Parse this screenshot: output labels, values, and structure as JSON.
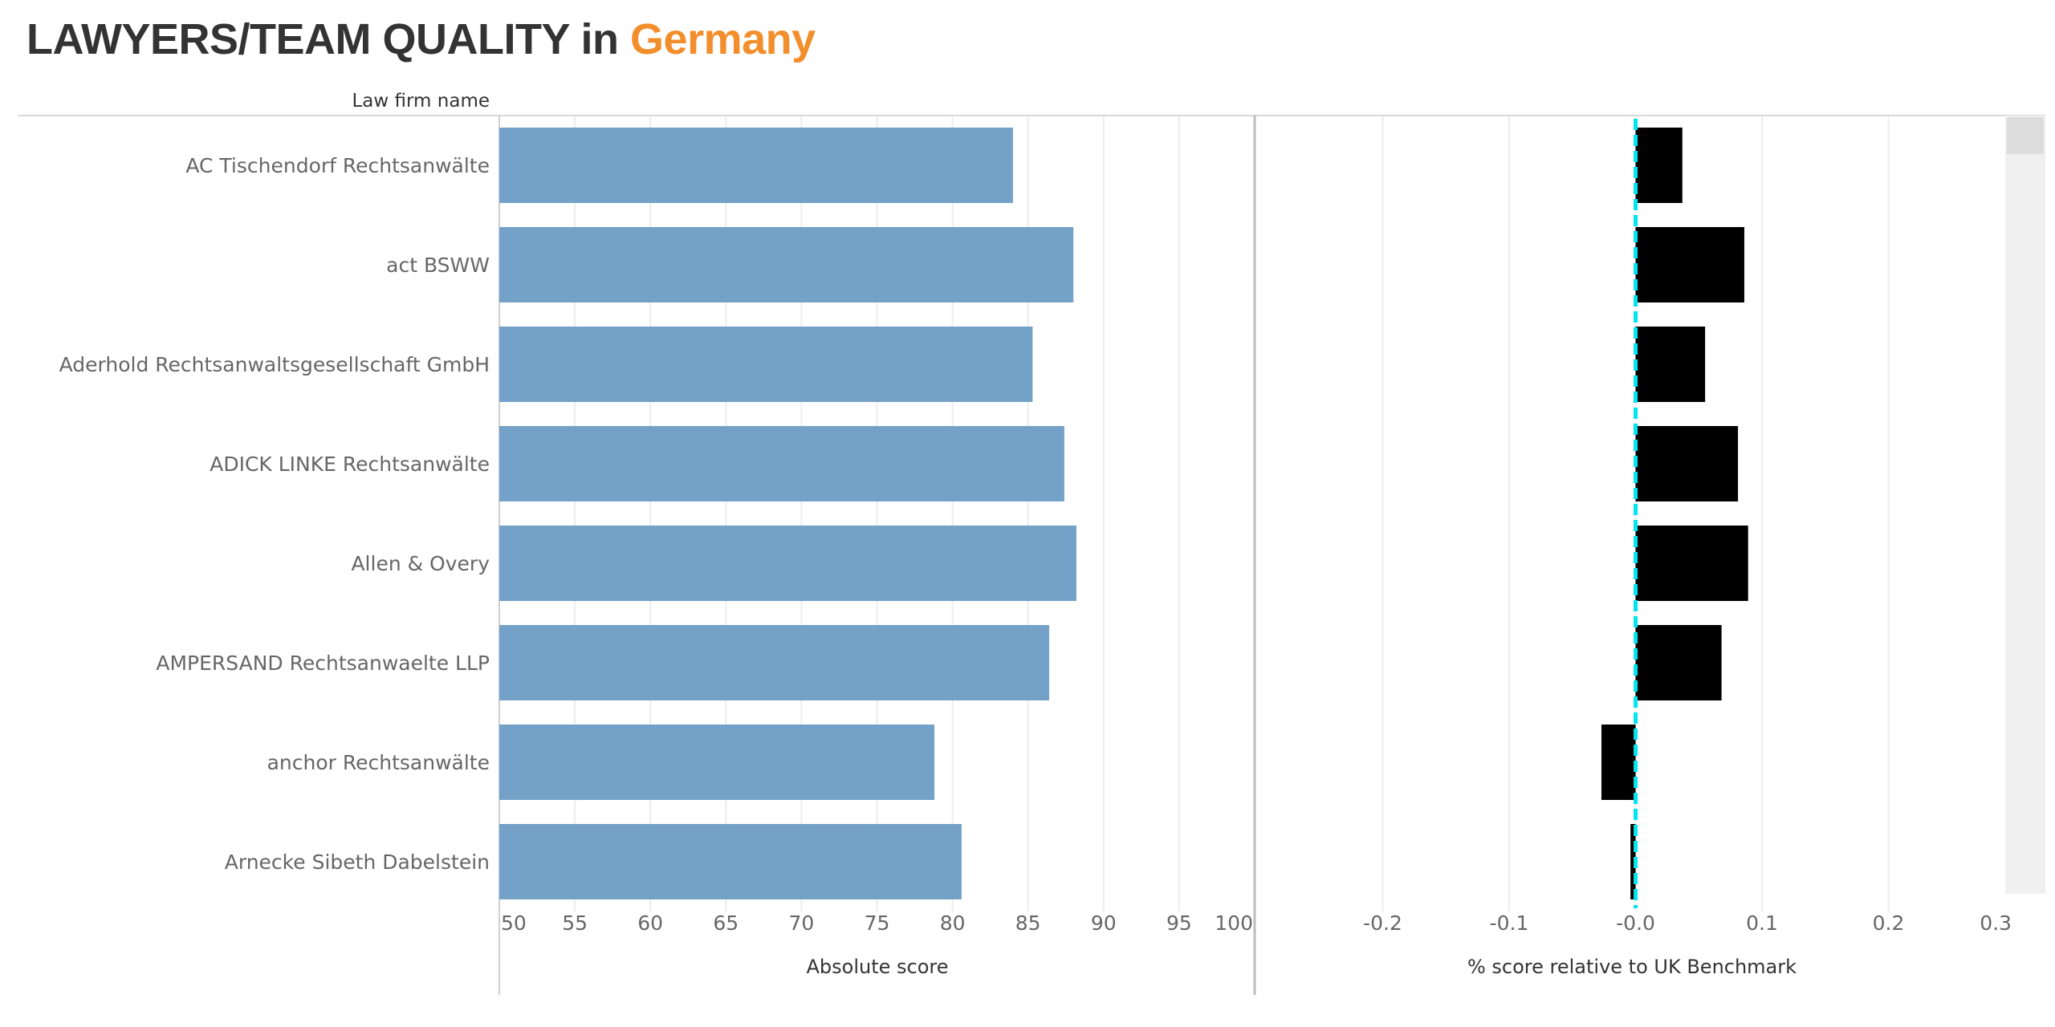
{
  "title": {
    "prefix": "LAWYERS/TEAM QUALITY in",
    "country": "Germany",
    "prefix_color": "#333333",
    "country_color": "#f28e2b"
  },
  "row_header": "Law firm name",
  "colors": {
    "absolute_bar": "#74a1c7",
    "relative_bar": "#000000",
    "benchmark_line": "#00e5ee",
    "scrollbar_track": "#f0f0f0",
    "scrollbar_thumb": "#dcdcdc"
  },
  "chart_data": [
    {
      "type": "bar",
      "orientation": "horizontal",
      "categories": [
        "AC Tischendorf Rechtsanwälte",
        "act BSWW",
        "Aderhold Rechtsanwaltsgesellschaft GmbH",
        "ADICK LINKE Rechtsanwälte",
        "Allen & Overy",
        "AMPERSAND Rechtsanwaelte LLP",
        "anchor Rechtsanwälte",
        "Arnecke Sibeth Dabelstein"
      ],
      "values": [
        84.0,
        88.0,
        85.3,
        87.4,
        88.2,
        86.4,
        78.8,
        80.6
      ],
      "xlabel": "Absolute score",
      "xlim": [
        50,
        100
      ],
      "xticks": [
        "50",
        "55",
        "60",
        "65",
        "70",
        "75",
        "80",
        "85",
        "90",
        "95",
        "100"
      ],
      "grid": true
    },
    {
      "type": "bar",
      "orientation": "horizontal",
      "categories": [
        "AC Tischendorf Rechtsanwälte",
        "act BSWW",
        "Aderhold Rechtsanwaltsgesellschaft GmbH",
        "ADICK LINKE Rechtsanwälte",
        "Allen & Overy",
        "AMPERSAND Rechtsanwaelte LLP",
        "anchor Rechtsanwälte",
        "Arnecke Sibeth Dabelstein"
      ],
      "values": [
        0.037,
        0.086,
        0.055,
        0.081,
        0.089,
        0.068,
        -0.027,
        -0.004
      ],
      "xlabel": "% score relative to UK Benchmark",
      "xlim": [
        -0.3,
        0.3
      ],
      "xticks": [
        "-0.2",
        "-0.1",
        "-0.0",
        "0.1",
        "0.2",
        "0.3"
      ],
      "reference_line": 0,
      "grid": true
    }
  ]
}
